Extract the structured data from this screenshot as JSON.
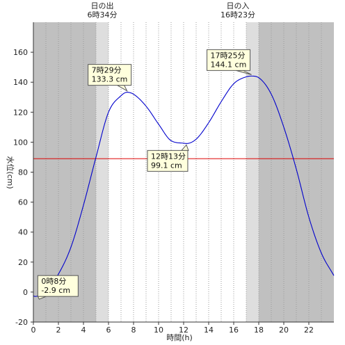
{
  "chart_data": {
    "type": "line",
    "xlabel": "時間(h)",
    "ylabel": "水位(cm)",
    "xlim": [
      0,
      24
    ],
    "ylim": [
      -20,
      180
    ],
    "x_ticks": [
      0,
      2,
      4,
      6,
      8,
      10,
      12,
      14,
      16,
      18,
      20,
      22
    ],
    "y_ticks": [
      -20,
      0,
      20,
      40,
      60,
      80,
      100,
      120,
      140,
      160
    ],
    "grid": "vertical dotted lines every hour",
    "sunrise": {
      "title": "日の出",
      "time": "6時34分",
      "hour": 6.57
    },
    "sunset": {
      "title": "日の入",
      "time": "16時23分",
      "hour": 16.38
    },
    "twilight": {
      "morning": [
        5.0,
        6.0
      ],
      "evening": [
        17.0,
        18.0
      ]
    },
    "reference_line": {
      "y": 89,
      "color": "#dd0000"
    },
    "series": [
      {
        "color": "#0000cc",
        "x": [
          0,
          0.13,
          1,
          2,
          3,
          4,
          5,
          6,
          7,
          7.48,
          8,
          9,
          10,
          11,
          12,
          12.22,
          13,
          14,
          15,
          16,
          17,
          17.42,
          18,
          19,
          20,
          21,
          22,
          23,
          24
        ],
        "y": [
          -2.5,
          -2.9,
          1,
          12,
          30,
          58,
          90,
          120,
          131,
          133.3,
          132,
          124,
          112,
          101,
          99.3,
          99.1,
          102,
          113,
          127,
          139,
          143.6,
          144.1,
          143,
          132,
          110,
          82,
          50,
          26,
          11
        ]
      }
    ],
    "annotations": [
      {
        "time": "0時8分",
        "value": "-2.9 cm",
        "x": 0.13,
        "y": -2.9
      },
      {
        "time": "7時29分",
        "value": "133.3 cm",
        "x": 7.48,
        "y": 133.3
      },
      {
        "time": "12時13分",
        "value": "99.1 cm",
        "x": 12.22,
        "y": 99.1
      },
      {
        "time": "17時25分",
        "value": "144.1 cm",
        "x": 17.42,
        "y": 144.1
      }
    ]
  },
  "colors": {
    "night": "#c0c0c0",
    "twilight": "#dedede",
    "day": "#ffffff",
    "grid": "#9a9a9a",
    "annotation_fill": "#ffffdd",
    "annotation_border": "#555555"
  }
}
